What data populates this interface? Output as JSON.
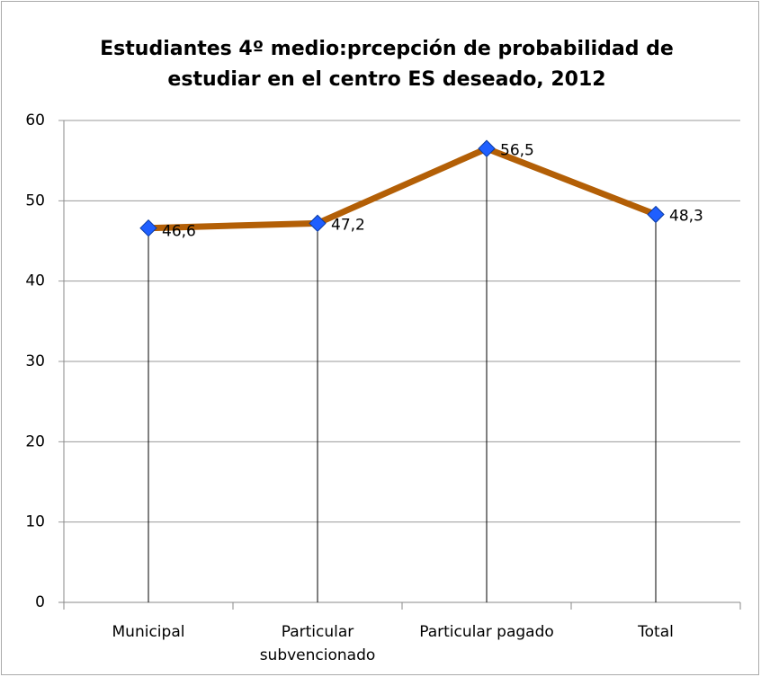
{
  "chart_data": {
    "type": "line",
    "title": "Estudiantes 4º medio:prcepción de probabilidad de estudiar en el centro ES deseado, 2012",
    "categories": [
      "Municipal",
      "Particular subvencionado",
      "Particular pagado",
      "Total"
    ],
    "values": [
      46.6,
      47.2,
      56.5,
      48.3
    ],
    "value_labels": [
      "46,6",
      "47,2",
      "56,5",
      "48,3"
    ],
    "color": "#b35f06",
    "marker_color": "#1f5fff",
    "ylim": [
      0,
      60
    ],
    "yticks": [
      0,
      10,
      20,
      30,
      40,
      50,
      60
    ],
    "grid": true,
    "drop_lines": true
  }
}
